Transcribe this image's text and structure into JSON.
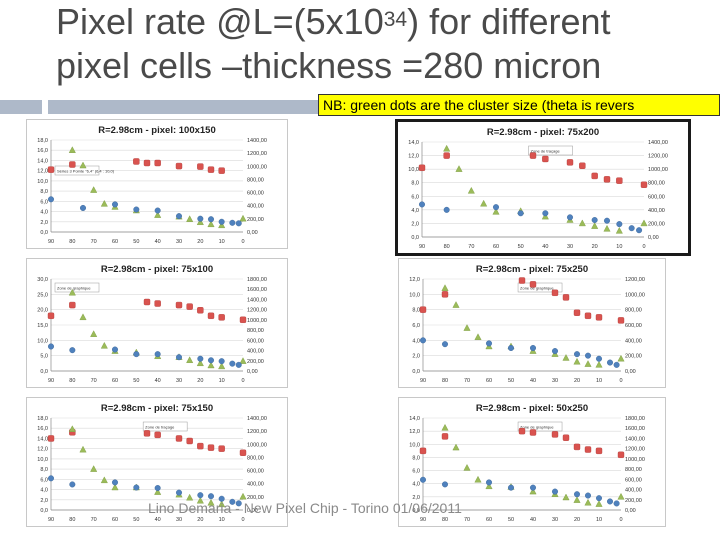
{
  "slide": {
    "title_pre": "Pixel rate @L=(5x10",
    "title_sup": "34",
    "title_post": ") for different",
    "title_line2": "pixel cells –thickness =280 micron",
    "note": "NB: green dots are the cluster size (theta is revers",
    "footer": "Lino Demaria - New Pixel Chip - Torino 01/06/2011"
  },
  "colors": {
    "red": "#d9534f",
    "green": "#9bbb59",
    "blue": "#4f81bd",
    "accent_bar": "#aeb9c9",
    "accent_cap": "#d3632a",
    "note_bg": "#ffff00"
  },
  "chart_data": [
    {
      "type": "scatter",
      "title": "R=2.98cm - pixel: 100x150",
      "x_ticks": [
        "90",
        "80",
        "70",
        "60",
        "50",
        "40",
        "30",
        "20",
        "10",
        "0"
      ],
      "y_left_ticks": [
        "0,0",
        "2,0",
        "4,0",
        "6,0",
        "8,0",
        "10,0",
        "12,0",
        "14,0",
        "16,0",
        "18,0"
      ],
      "y_right_ticks": [
        "0,00",
        "200,00",
        "400,00",
        "600,00",
        "800,00",
        "1000,00",
        "1200,00",
        "1400,00"
      ],
      "ylim": [
        0,
        18
      ],
      "annotation": "Séries 3 Pointe \"6,4\" (6,4 : 10,0)",
      "series": [
        {
          "name": "red",
          "color": "#d9534f",
          "points": [
            [
              90,
              12.2
            ],
            [
              80,
              13.2
            ],
            [
              50,
              13.8
            ],
            [
              45,
              13.5
            ],
            [
              40,
              13.5
            ],
            [
              30,
              12.9
            ],
            [
              20,
              12.8
            ],
            [
              15,
              12.2
            ],
            [
              10,
              12.0
            ]
          ]
        },
        {
          "name": "green",
          "color": "#9bbb59",
          "points": [
            [
              80,
              16.0
            ],
            [
              75,
              13.0
            ],
            [
              70,
              8.2
            ],
            [
              65,
              5.5
            ],
            [
              60,
              4.9
            ],
            [
              50,
              4.2
            ],
            [
              40,
              3.3
            ],
            [
              30,
              3.0
            ],
            [
              25,
              2.5
            ],
            [
              20,
              1.9
            ],
            [
              15,
              1.5
            ],
            [
              10,
              1.3
            ],
            [
              0,
              2.6
            ]
          ]
        },
        {
          "name": "blue",
          "color": "#4f81bd",
          "points": [
            [
              90,
              6.4
            ],
            [
              75,
              4.7
            ],
            [
              60,
              5.4
            ],
            [
              50,
              4.4
            ],
            [
              40,
              4.2
            ],
            [
              30,
              3.1
            ],
            [
              20,
              2.6
            ],
            [
              15,
              2.5
            ],
            [
              10,
              2.0
            ],
            [
              5,
              1.8
            ],
            [
              2,
              1.7
            ]
          ]
        }
      ]
    },
    {
      "type": "scatter",
      "title": "R=2.98cm - pixel: 75x200",
      "x_ticks": [
        "90",
        "80",
        "70",
        "60",
        "50",
        "40",
        "30",
        "20",
        "10",
        "0"
      ],
      "y_left_ticks": [
        "0,0",
        "2,0",
        "4,0",
        "6,0",
        "8,0",
        "10,0",
        "12,0",
        "14,0"
      ],
      "y_right_ticks": [
        "0,00",
        "200,00",
        "400,00",
        "600,00",
        "800,00",
        "1000,00",
        "1200,00",
        "1400,00"
      ],
      "ylim": [
        0,
        14
      ],
      "annotation": "Zone de traçage",
      "series": [
        {
          "name": "red",
          "color": "#d9534f",
          "points": [
            [
              90,
              10.2
            ],
            [
              80,
              12.0
            ],
            [
              45,
              12.0
            ],
            [
              40,
              11.5
            ],
            [
              30,
              11.0
            ],
            [
              25,
              10.5
            ],
            [
              20,
              9.0
            ],
            [
              15,
              8.5
            ],
            [
              10,
              8.3
            ],
            [
              0,
              7.7
            ]
          ]
        },
        {
          "name": "green",
          "color": "#9bbb59",
          "points": [
            [
              80,
              13.0
            ],
            [
              75,
              10.0
            ],
            [
              70,
              6.8
            ],
            [
              65,
              4.9
            ],
            [
              60,
              3.7
            ],
            [
              50,
              3.8
            ],
            [
              40,
              3.0
            ],
            [
              30,
              2.5
            ],
            [
              25,
              2.0
            ],
            [
              20,
              1.6
            ],
            [
              15,
              1.2
            ],
            [
              10,
              0.9
            ],
            [
              0,
              2.0
            ]
          ]
        },
        {
          "name": "blue",
          "color": "#4f81bd",
          "points": [
            [
              90,
              4.8
            ],
            [
              80,
              4.0
            ],
            [
              60,
              4.4
            ],
            [
              50,
              3.5
            ],
            [
              40,
              3.5
            ],
            [
              30,
              2.9
            ],
            [
              20,
              2.5
            ],
            [
              15,
              2.4
            ],
            [
              10,
              1.9
            ],
            [
              5,
              1.3
            ],
            [
              2,
              1.0
            ]
          ]
        }
      ]
    },
    {
      "type": "scatter",
      "title": "R=2.98cm - pixel: 75x100",
      "x_ticks": [
        "90",
        "80",
        "70",
        "60",
        "50",
        "40",
        "30",
        "20",
        "10",
        "0"
      ],
      "y_left_ticks": [
        "0,0",
        "5,0",
        "10,0",
        "15,0",
        "20,0",
        "25,0",
        "30,0"
      ],
      "y_right_ticks": [
        "0,00",
        "200,00",
        "400,00",
        "600,00",
        "800,00",
        "1000,00",
        "1200,00",
        "1400,00",
        "1600,00",
        "1800,00"
      ],
      "ylim": [
        0,
        30
      ],
      "annotation": "Zone de graphique",
      "series": [
        {
          "name": "red",
          "color": "#d9534f",
          "points": [
            [
              90,
              18.0
            ],
            [
              80,
              21.5
            ],
            [
              45,
              22.5
            ],
            [
              40,
              22.0
            ],
            [
              30,
              21.5
            ],
            [
              25,
              21.0
            ],
            [
              20,
              19.8
            ],
            [
              15,
              18.0
            ],
            [
              10,
              17.5
            ],
            [
              0,
              16.7
            ]
          ]
        },
        {
          "name": "green",
          "color": "#9bbb59",
          "points": [
            [
              80,
              25.5
            ],
            [
              75,
              17.5
            ],
            [
              70,
              12.0
            ],
            [
              65,
              8.2
            ],
            [
              60,
              6.5
            ],
            [
              50,
              6.0
            ],
            [
              40,
              4.8
            ],
            [
              30,
              4.5
            ],
            [
              25,
              3.5
            ],
            [
              20,
              2.5
            ],
            [
              15,
              1.8
            ],
            [
              10,
              1.5
            ],
            [
              0,
              3.2
            ]
          ]
        },
        {
          "name": "blue",
          "color": "#4f81bd",
          "points": [
            [
              90,
              8.0
            ],
            [
              80,
              6.8
            ],
            [
              60,
              7.0
            ],
            [
              50,
              5.5
            ],
            [
              40,
              5.5
            ],
            [
              30,
              4.5
            ],
            [
              20,
              4.0
            ],
            [
              15,
              3.5
            ],
            [
              10,
              3.2
            ],
            [
              5,
              2.4
            ],
            [
              2,
              2.0
            ]
          ]
        }
      ]
    },
    {
      "type": "scatter",
      "title": "R=2.98cm - pixel: 75x250",
      "x_ticks": [
        "90",
        "80",
        "70",
        "60",
        "50",
        "40",
        "30",
        "20",
        "10",
        "0"
      ],
      "y_left_ticks": [
        "0,0",
        "2,0",
        "4,0",
        "6,0",
        "8,0",
        "10,0",
        "12,0"
      ],
      "y_right_ticks": [
        "0,00",
        "200,00",
        "400,00",
        "600,00",
        "800,00",
        "1000,00",
        "1200,00"
      ],
      "ylim": [
        0,
        12
      ],
      "annotation": "Zone de graphique",
      "series": [
        {
          "name": "red",
          "color": "#d9534f",
          "points": [
            [
              90,
              8.0
            ],
            [
              80,
              10.0
            ],
            [
              45,
              11.8
            ],
            [
              40,
              11.3
            ],
            [
              30,
              10.2
            ],
            [
              25,
              9.6
            ],
            [
              20,
              7.6
            ],
            [
              15,
              7.2
            ],
            [
              10,
              7.0
            ],
            [
              0,
              6.6
            ]
          ]
        },
        {
          "name": "green",
          "color": "#9bbb59",
          "points": [
            [
              80,
              10.8
            ],
            [
              75,
              8.6
            ],
            [
              70,
              5.6
            ],
            [
              65,
              4.4
            ],
            [
              60,
              3.2
            ],
            [
              50,
              3.2
            ],
            [
              40,
              2.6
            ],
            [
              30,
              2.2
            ],
            [
              25,
              1.7
            ],
            [
              20,
              1.2
            ],
            [
              15,
              0.9
            ],
            [
              10,
              0.8
            ],
            [
              0,
              1.6
            ]
          ]
        },
        {
          "name": "blue",
          "color": "#4f81bd",
          "points": [
            [
              90,
              4.0
            ],
            [
              80,
              3.5
            ],
            [
              60,
              3.6
            ],
            [
              50,
              3.0
            ],
            [
              40,
              3.0
            ],
            [
              30,
              2.6
            ],
            [
              20,
              2.2
            ],
            [
              15,
              2.0
            ],
            [
              10,
              1.6
            ],
            [
              5,
              1.1
            ],
            [
              2,
              0.8
            ]
          ]
        }
      ]
    },
    {
      "type": "scatter",
      "title": "R=2.98cm - pixel: 75x150",
      "x_ticks": [
        "90",
        "80",
        "70",
        "60",
        "50",
        "40",
        "30",
        "20",
        "10",
        "0"
      ],
      "y_left_ticks": [
        "0,0",
        "2,0",
        "4,0",
        "6,0",
        "8,0",
        "10,0",
        "12,0",
        "14,0",
        "16,0",
        "18,0"
      ],
      "y_right_ticks": [
        "0,00",
        "200,00",
        "400,00",
        "600,00",
        "800,00",
        "1000,00",
        "1200,00",
        "1400,00"
      ],
      "ylim": [
        0,
        18
      ],
      "annotation": "Zone de traçage",
      "series": [
        {
          "name": "red",
          "color": "#d9534f",
          "points": [
            [
              90,
              14.0
            ],
            [
              80,
              15.2
            ],
            [
              45,
              15.0
            ],
            [
              40,
              14.7
            ],
            [
              30,
              14.0
            ],
            [
              25,
              13.5
            ],
            [
              20,
              12.5
            ],
            [
              15,
              12.2
            ],
            [
              10,
              12.0
            ],
            [
              0,
              11.2
            ]
          ]
        },
        {
          "name": "green",
          "color": "#9bbb59",
          "points": [
            [
              80,
              15.8
            ],
            [
              75,
              11.8
            ],
            [
              70,
              8.0
            ],
            [
              65,
              5.8
            ],
            [
              60,
              4.4
            ],
            [
              50,
              4.4
            ],
            [
              40,
              3.5
            ],
            [
              30,
              3.0
            ],
            [
              25,
              2.4
            ],
            [
              20,
              1.8
            ],
            [
              15,
              1.4
            ],
            [
              10,
              1.1
            ],
            [
              0,
              2.6
            ]
          ]
        },
        {
          "name": "blue",
          "color": "#4f81bd",
          "points": [
            [
              90,
              6.2
            ],
            [
              80,
              5.0
            ],
            [
              60,
              5.4
            ],
            [
              50,
              4.4
            ],
            [
              40,
              4.3
            ],
            [
              30,
              3.4
            ],
            [
              20,
              2.9
            ],
            [
              15,
              2.7
            ],
            [
              10,
              2.2
            ],
            [
              5,
              1.6
            ],
            [
              2,
              1.3
            ]
          ]
        }
      ]
    },
    {
      "type": "scatter",
      "title": "R=2.98cm - pixel: 50x250",
      "x_ticks": [
        "90",
        "80",
        "70",
        "60",
        "50",
        "40",
        "30",
        "20",
        "10",
        "0"
      ],
      "y_left_ticks": [
        "0,0",
        "2,0",
        "4,0",
        "6,0",
        "8,0",
        "10,0",
        "12,0",
        "14,0"
      ],
      "y_right_ticks": [
        "0,00",
        "200,00",
        "400,00",
        "600,00",
        "800,00",
        "1000,00",
        "1200,00",
        "1400,00",
        "1600,00",
        "1800,00"
      ],
      "ylim": [
        0,
        14
      ],
      "annotation": "Zone de graphique",
      "series": [
        {
          "name": "red",
          "color": "#d9534f",
          "points": [
            [
              90,
              9.0
            ],
            [
              80,
              11.2
            ],
            [
              45,
              12.0
            ],
            [
              40,
              11.8
            ],
            [
              30,
              11.5
            ],
            [
              25,
              11.0
            ],
            [
              20,
              9.6
            ],
            [
              15,
              9.2
            ],
            [
              10,
              9.0
            ],
            [
              0,
              8.4
            ]
          ]
        },
        {
          "name": "green",
          "color": "#9bbb59",
          "points": [
            [
              80,
              12.5
            ],
            [
              75,
              9.5
            ],
            [
              70,
              6.4
            ],
            [
              65,
              4.6
            ],
            [
              60,
              3.6
            ],
            [
              50,
              3.5
            ],
            [
              40,
              2.8
            ],
            [
              30,
              2.4
            ],
            [
              25,
              1.9
            ],
            [
              20,
              1.5
            ],
            [
              15,
              1.1
            ],
            [
              10,
              0.9
            ],
            [
              0,
              2.0
            ]
          ]
        },
        {
          "name": "blue",
          "color": "#4f81bd",
          "points": [
            [
              90,
              4.6
            ],
            [
              80,
              3.9
            ],
            [
              60,
              4.2
            ],
            [
              50,
              3.4
            ],
            [
              40,
              3.4
            ],
            [
              30,
              2.8
            ],
            [
              20,
              2.4
            ],
            [
              15,
              2.2
            ],
            [
              10,
              1.8
            ],
            [
              5,
              1.3
            ],
            [
              2,
              1.0
            ]
          ]
        }
      ]
    }
  ]
}
